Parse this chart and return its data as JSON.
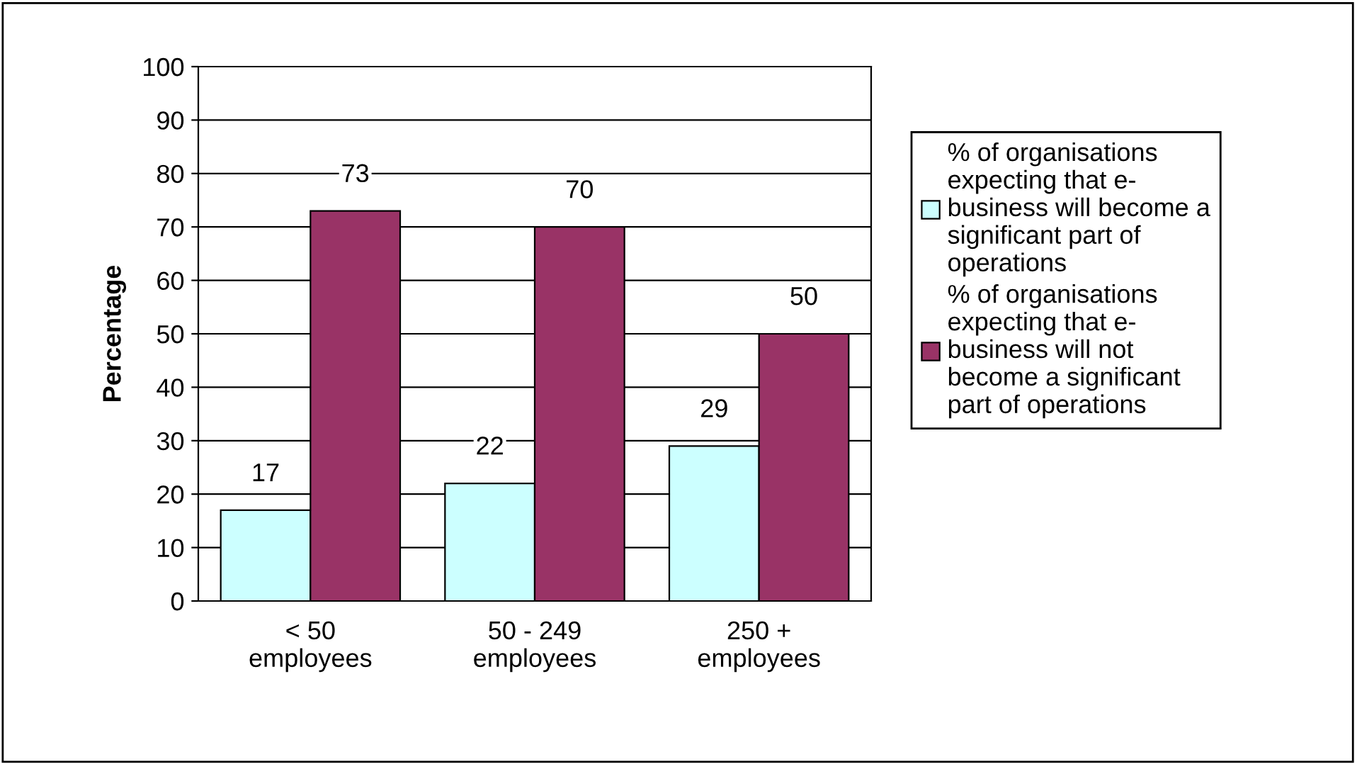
{
  "chart_data": {
    "type": "bar",
    "ylabel": "Percentage",
    "categories": [
      "< 50\nemployees",
      "50 - 249\nemployees",
      "250 +\nemployees"
    ],
    "series": [
      {
        "name": "% of organisations\nexpecting that e-\nbusiness will become a\nsignificant part of\noperations",
        "color": "#ccffff",
        "values": [
          17,
          22,
          29
        ]
      },
      {
        "name": "% of organisations\nexpecting that e-\nbusiness will not\nbecome a significant\npart of operations",
        "color": "#993366",
        "values": [
          73,
          70,
          50
        ]
      }
    ],
    "ylim": [
      0,
      100
    ],
    "yticks": [
      0,
      10,
      20,
      30,
      40,
      50,
      60,
      70,
      80,
      90,
      100
    ],
    "grid": "y",
    "legend": "right",
    "data_labels": true
  }
}
